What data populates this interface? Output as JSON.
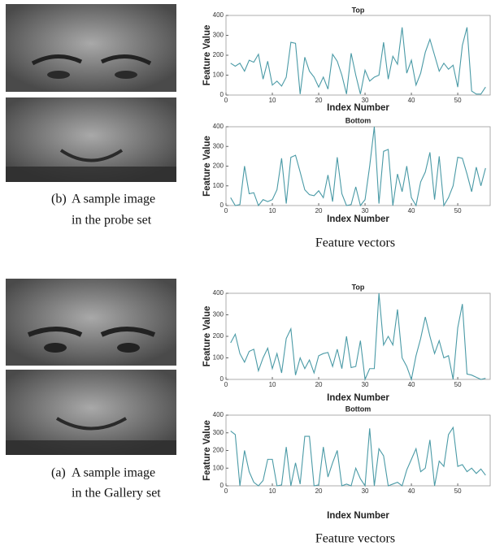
{
  "chart_data": [
    {
      "type": "line",
      "title": "Top",
      "xlabel": "Index Number",
      "ylabel": "Feature Value",
      "color": "#4a9aa6",
      "xlim": [
        0,
        57
      ],
      "ylim": [
        0,
        400
      ],
      "xticks": [
        0,
        10,
        20,
        30,
        40,
        50
      ],
      "yticks": [
        0,
        100,
        200,
        300,
        400
      ],
      "x": [
        1,
        2,
        3,
        4,
        5,
        6,
        7,
        8,
        9,
        10,
        11,
        12,
        13,
        14,
        15,
        16,
        17,
        18,
        19,
        20,
        21,
        22,
        23,
        24,
        25,
        26,
        27,
        28,
        29,
        30,
        31,
        32,
        33,
        34,
        35,
        36,
        37,
        38,
        39,
        40,
        41,
        42,
        43,
        44,
        45,
        46,
        47,
        48,
        49,
        50,
        51,
        52,
        53,
        54,
        55,
        56
      ],
      "values": [
        160,
        145,
        160,
        120,
        175,
        165,
        205,
        80,
        170,
        50,
        70,
        45,
        90,
        265,
        260,
        5,
        190,
        120,
        90,
        40,
        90,
        30,
        205,
        170,
        100,
        5,
        210,
        100,
        5,
        125,
        70,
        90,
        100,
        265,
        80,
        195,
        155,
        340,
        110,
        175,
        50,
        110,
        215,
        280,
        200,
        120,
        160,
        130,
        150,
        40,
        250,
        340,
        20,
        5,
        5,
        40
      ]
    },
    {
      "type": "line",
      "title": "Bottom",
      "xlabel": "Index Number",
      "ylabel": "Feature Value",
      "color": "#4a9aa6",
      "xlim": [
        0,
        57
      ],
      "ylim": [
        0,
        400
      ],
      "xticks": [
        0,
        10,
        20,
        30,
        40,
        50
      ],
      "yticks": [
        0,
        100,
        200,
        300,
        400
      ],
      "x": [
        1,
        2,
        3,
        4,
        5,
        6,
        7,
        8,
        9,
        10,
        11,
        12,
        13,
        14,
        15,
        16,
        17,
        18,
        19,
        20,
        21,
        22,
        23,
        24,
        25,
        26,
        27,
        28,
        29,
        30,
        31,
        32,
        33,
        34,
        35,
        36,
        37,
        38,
        39,
        40,
        41,
        42,
        43,
        44,
        45,
        46,
        47,
        48,
        49,
        50,
        51,
        52,
        53,
        54,
        55,
        56
      ],
      "values": [
        40,
        0,
        5,
        200,
        60,
        65,
        0,
        30,
        20,
        30,
        80,
        240,
        10,
        245,
        255,
        170,
        80,
        55,
        50,
        75,
        40,
        155,
        20,
        245,
        60,
        0,
        5,
        95,
        0,
        30,
        200,
        400,
        10,
        275,
        285,
        0,
        160,
        70,
        200,
        40,
        0,
        120,
        170,
        270,
        30,
        250,
        0,
        40,
        100,
        245,
        240,
        160,
        70,
        195,
        100,
        190
      ]
    },
    {
      "type": "line",
      "title": "Top",
      "xlabel": "Index Number",
      "ylabel": "Feature Value",
      "color": "#4a9aa6",
      "xlim": [
        0,
        57
      ],
      "ylim": [
        0,
        400
      ],
      "xticks": [
        0,
        10,
        20,
        30,
        40,
        50
      ],
      "yticks": [
        0,
        100,
        200,
        300,
        400
      ],
      "x": [
        1,
        2,
        3,
        4,
        5,
        6,
        7,
        8,
        9,
        10,
        11,
        12,
        13,
        14,
        15,
        16,
        17,
        18,
        19,
        20,
        21,
        22,
        23,
        24,
        25,
        26,
        27,
        28,
        29,
        30,
        31,
        32,
        33,
        34,
        35,
        36,
        37,
        38,
        39,
        40,
        41,
        42,
        43,
        44,
        45,
        46,
        47,
        48,
        49,
        50,
        51,
        52,
        53,
        54,
        55,
        56
      ],
      "values": [
        170,
        210,
        120,
        80,
        130,
        140,
        40,
        100,
        145,
        50,
        120,
        30,
        190,
        235,
        20,
        100,
        50,
        90,
        30,
        110,
        120,
        125,
        60,
        140,
        50,
        200,
        55,
        60,
        180,
        0,
        50,
        50,
        400,
        160,
        200,
        160,
        325,
        100,
        60,
        0,
        110,
        190,
        290,
        200,
        120,
        180,
        100,
        110,
        0,
        240,
        350,
        25,
        20,
        10,
        0,
        5
      ]
    },
    {
      "type": "line",
      "title": "Bottom",
      "xlabel": "Index Number",
      "ylabel": "Feature Value",
      "color": "#4a9aa6",
      "xlim": [
        0,
        57
      ],
      "ylim": [
        0,
        400
      ],
      "xticks": [
        0,
        10,
        20,
        30,
        40,
        50
      ],
      "yticks": [
        0,
        100,
        200,
        300,
        400
      ],
      "x": [
        1,
        2,
        3,
        4,
        5,
        6,
        7,
        8,
        9,
        10,
        11,
        12,
        13,
        14,
        15,
        16,
        17,
        18,
        19,
        20,
        21,
        22,
        23,
        24,
        25,
        26,
        27,
        28,
        29,
        30,
        31,
        32,
        33,
        34,
        35,
        36,
        37,
        38,
        39,
        40,
        41,
        42,
        43,
        44,
        45,
        46,
        47,
        48,
        49,
        50,
        51,
        52,
        53,
        54,
        55,
        56
      ],
      "values": [
        310,
        290,
        0,
        200,
        80,
        20,
        0,
        30,
        150,
        150,
        0,
        5,
        220,
        0,
        130,
        10,
        280,
        280,
        0,
        5,
        220,
        50,
        130,
        200,
        0,
        10,
        0,
        100,
        40,
        0,
        325,
        0,
        210,
        170,
        0,
        10,
        20,
        0,
        90,
        150,
        210,
        80,
        100,
        260,
        0,
        140,
        110,
        290,
        330,
        110,
        120,
        80,
        100,
        70,
        95,
        60
      ]
    }
  ],
  "probe_caption": {
    "label": "(b)",
    "line1": "A sample image",
    "line2": "in the probe set"
  },
  "probe_vectors_caption": "Feature vectors",
  "gallery_caption": {
    "label": "(a)",
    "line1": "A sample image",
    "line2": "in the Gallery set"
  },
  "gallery_vectors_caption": "Feature vectors"
}
